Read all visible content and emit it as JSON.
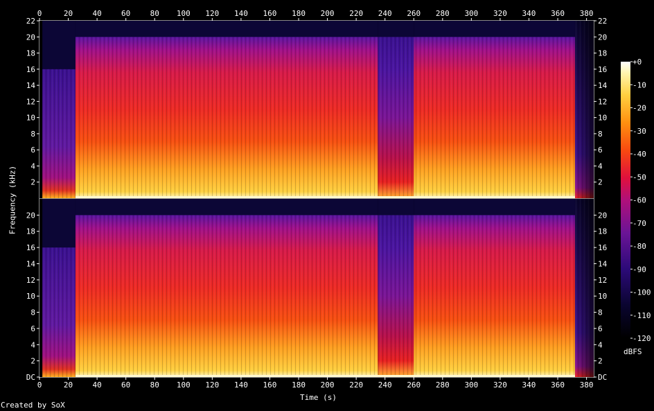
{
  "credit": "Created by SoX",
  "chart_data": {
    "type": "heatmap",
    "xlabel": "Time (s)",
    "ylabel": "Frequency (kHz)",
    "x_ticks": [
      "0",
      "20",
      "40",
      "60",
      "80",
      "100",
      "120",
      "140",
      "160",
      "180",
      "200",
      "220",
      "240",
      "260",
      "280",
      "300",
      "320",
      "340",
      "360",
      "380"
    ],
    "x_range": [
      0,
      385
    ],
    "y_ticks_top": [
      "2",
      "4",
      "6",
      "8",
      "10",
      "12",
      "14",
      "16",
      "18",
      "20",
      "22"
    ],
    "y_ticks_bottom": [
      "DC",
      "2",
      "4",
      "6",
      "8",
      "10",
      "12",
      "14",
      "16",
      "18",
      "20"
    ],
    "y_range_khz": [
      0,
      22
    ],
    "channels": 2,
    "colorbar": {
      "unit": "dBFS",
      "ticks": [
        "+0",
        "-10",
        "-20",
        "-30",
        "-40",
        "-50",
        "-60",
        "-70",
        "-80",
        "-90",
        "-100",
        "-110",
        "-120"
      ],
      "range": [
        -120,
        0
      ]
    },
    "segments_s": [
      {
        "start": 0,
        "end": 2,
        "level": "silent"
      },
      {
        "start": 2,
        "end": 25,
        "level": "quiet",
        "cutoff_khz": 16
      },
      {
        "start": 25,
        "end": 235,
        "level": "loud",
        "cutoff_khz": 20
      },
      {
        "start": 235,
        "end": 260,
        "level": "medium",
        "cutoff_khz": 20
      },
      {
        "start": 260,
        "end": 372,
        "level": "loud",
        "cutoff_khz": 20
      },
      {
        "start": 372,
        "end": 385,
        "level": "fade"
      }
    ]
  }
}
